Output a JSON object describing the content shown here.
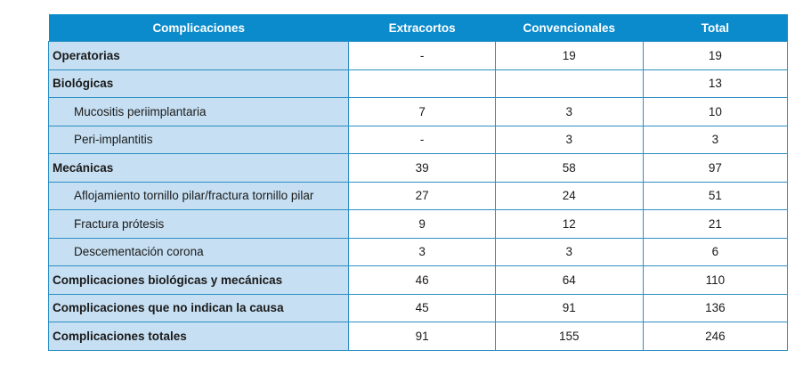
{
  "headers": [
    "Complicaciones",
    "Extracortos",
    "Convencionales",
    "Total"
  ],
  "rows": [
    {
      "label": "Operatorias",
      "bold": true,
      "extracortos": "-",
      "convencionales": "19",
      "total": "19"
    },
    {
      "label": "Biológicas",
      "bold": true,
      "extracortos": "",
      "convencionales": "",
      "total": "13"
    },
    {
      "label": "Mucositis periimplantaria",
      "bold": false,
      "extracortos": "7",
      "convencionales": "3",
      "total": "10"
    },
    {
      "label": "Peri-implantitis",
      "bold": false,
      "extracortos": "-",
      "convencionales": "3",
      "total": "3"
    },
    {
      "label": "Mecánicas",
      "bold": true,
      "extracortos": "39",
      "convencionales": "58",
      "total": "97"
    },
    {
      "label": "Aflojamiento tornillo pilar/fractura tornillo pilar",
      "bold": false,
      "extracortos": "27",
      "convencionales": "24",
      "total": "51"
    },
    {
      "label": "Fractura prótesis",
      "bold": false,
      "extracortos": "9",
      "convencionales": "12",
      "total": "21"
    },
    {
      "label": "Descementación corona",
      "bold": false,
      "extracortos": "3",
      "convencionales": "3",
      "total": "6"
    },
    {
      "label": "Complicaciones biológicas y mecánicas",
      "bold": true,
      "extracortos": "46",
      "convencionales": "64",
      "total": "110"
    },
    {
      "label": "Complicaciones que no indican la causa",
      "bold": true,
      "extracortos": "45",
      "convencionales": "91",
      "total": "136"
    },
    {
      "label": "Complicaciones totales",
      "bold": true,
      "extracortos": "91",
      "convencionales": "155",
      "total": "246"
    }
  ]
}
